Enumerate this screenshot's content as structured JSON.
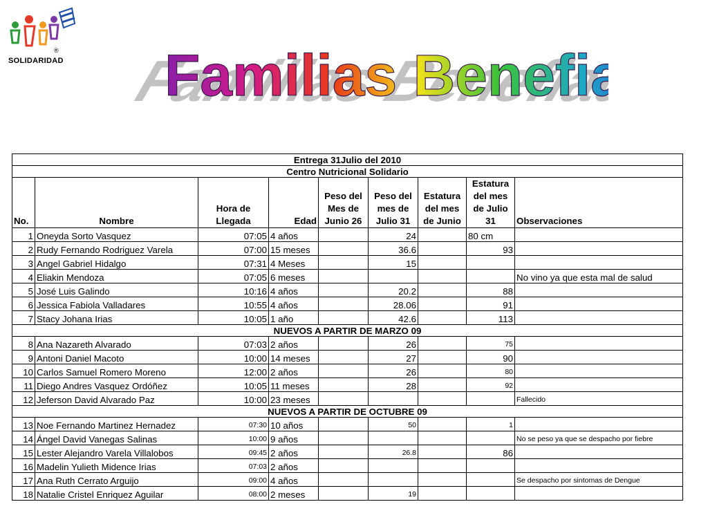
{
  "logo": {
    "label": "SOLIDARIDAD",
    "registered": "®"
  },
  "title": "Familias Benefiadas",
  "table": {
    "header_1": "Entrega  31Julio del 2010",
    "header_2": "Centro Nutricional Solidario",
    "columns": [
      "No.",
      "Nombre",
      "Hora de Llegada",
      "Edad",
      "Peso del Mes de Junio 26",
      "Peso del mes de Julio 31",
      "Estatura del mes de Junio",
      "Estatura del mes de Julio 31",
      "Observaciones"
    ],
    "rows_a": [
      {
        "no": "1",
        "nombre": "Oneyda Sorto Vasquez",
        "hora": "07:05",
        "edad": "4 años",
        "peso_jun": "",
        "peso_jul": "24",
        "est_jun": "",
        "est_jul": "80 cm",
        "obs": ""
      },
      {
        "no": "2",
        "nombre": "Rudy  Fernando Rodriguez Varela",
        "hora": "07:00",
        "edad": "15 meses",
        "peso_jun": "",
        "peso_jul": "36.6",
        "est_jun": "",
        "est_jul": "93",
        "obs": ""
      },
      {
        "no": "3",
        "nombre": "Angel Gabriel Hidalgo",
        "hora": "07:31",
        "edad": "4 Meses",
        "peso_jun": "",
        "peso_jul": "15",
        "est_jun": "",
        "est_jul": "",
        "obs": ""
      },
      {
        "no": "4",
        "nombre": "Eliakin Mendoza",
        "hora": "07:05",
        "edad": "6 meses",
        "peso_jun": "",
        "peso_jul": "",
        "est_jun": "",
        "est_jul": "",
        "obs": "No vino ya que esta mal de salud"
      },
      {
        "no": "5",
        "nombre": "José Luis Galindo",
        "hora": "10:16",
        "edad": "4 años",
        "peso_jun": "",
        "peso_jul": "20.2",
        "est_jun": "",
        "est_jul": "88",
        "obs": ""
      },
      {
        "no": "6",
        "nombre": "Jessica Fabiola Valladares",
        "hora": "10:55",
        "edad": "4 años",
        "peso_jun": "",
        "peso_jul": "28.06",
        "est_jun": "",
        "est_jul": "91",
        "obs": ""
      },
      {
        "no": "7",
        "nombre": "Stacy Johana Irias",
        "hora": "10:05",
        "edad": "1 año",
        "peso_jun": "",
        "peso_jul": "42.6",
        "est_jun": "",
        "est_jul": "113",
        "obs": ""
      }
    ],
    "section_b": "NUEVOS A PARTIR DE MARZO 09",
    "rows_b": [
      {
        "no": "8",
        "nombre": "Ana Nazareth Alvarado",
        "hora": "07:03",
        "edad": "2 años",
        "peso_jun": "",
        "peso_jul": "26",
        "est_jun": "",
        "est_jul": "75",
        "obs": ""
      },
      {
        "no": "9",
        "nombre": "Antoni Daniel Macoto",
        "hora": "10:00",
        "edad": "14 meses",
        "peso_jun": "",
        "peso_jul": "27",
        "est_jun": "",
        "est_jul": "90",
        "obs": ""
      },
      {
        "no": "10",
        "nombre": "Carlos Samuel Romero Moreno",
        "hora": "12:00",
        "edad": "2 años",
        "peso_jun": "",
        "peso_jul": "26",
        "est_jun": "",
        "est_jul": "80",
        "obs": ""
      },
      {
        "no": "11",
        "nombre": "Diego Andres Vasquez Ordóñez",
        "hora": "10:05",
        "edad": "11 meses",
        "peso_jun": "",
        "peso_jul": "28",
        "est_jun": "",
        "est_jul": "92",
        "obs": ""
      },
      {
        "no": "12",
        "nombre": "Jeferson David Alvarado Paz",
        "hora": "10:00",
        "edad": "23 meses",
        "peso_jun": "",
        "peso_jul": "",
        "est_jun": "",
        "est_jul": "",
        "obs": "Fallecido"
      }
    ],
    "section_c": "NUEVOS A PARTIR DE OCTUBRE 09",
    "rows_c": [
      {
        "no": "13",
        "nombre": "Noe Fernando Martinez Hernadez",
        "hora": "07:30",
        "edad": "10 años",
        "peso_jun": "",
        "peso_jul": "50",
        "est_jun": "",
        "est_jul": "1",
        "obs": ""
      },
      {
        "no": "14",
        "nombre": "Ángel David Vanegas Salinas",
        "hora": "10:00",
        "edad": "9 años",
        "peso_jun": "",
        "peso_jul": "",
        "est_jun": "",
        "est_jul": "",
        "obs": "No se peso ya que se despacho por fiebre"
      },
      {
        "no": "15",
        "nombre": "Lester Alejandro Varela Villalobos",
        "hora": "09:45",
        "edad": "2 años",
        "peso_jun": "",
        "peso_jul": "26.8",
        "est_jun": "",
        "est_jul": "86",
        "obs": ""
      },
      {
        "no": "16",
        "nombre": "Madelin Yulieth Midence Irias",
        "hora": "07:03",
        "edad": "2 años",
        "peso_jun": "",
        "peso_jul": "",
        "est_jun": "",
        "est_jul": "",
        "obs": ""
      },
      {
        "no": "17",
        "nombre": "Ana Ruth Cerrato Arguijo",
        "hora": "09:00",
        "edad": "4 años",
        "peso_jun": "",
        "peso_jul": "",
        "est_jun": "",
        "est_jul": "",
        "obs": "Se despacho por sintomas de Dengue"
      },
      {
        "no": "18",
        "nombre": "Natalie Cristel Enriquez Aguilar",
        "hora": "08:00",
        "edad": "2 meses",
        "peso_jun": "",
        "peso_jul": "19",
        "est_jun": "",
        "est_jul": "",
        "obs": ""
      }
    ]
  }
}
